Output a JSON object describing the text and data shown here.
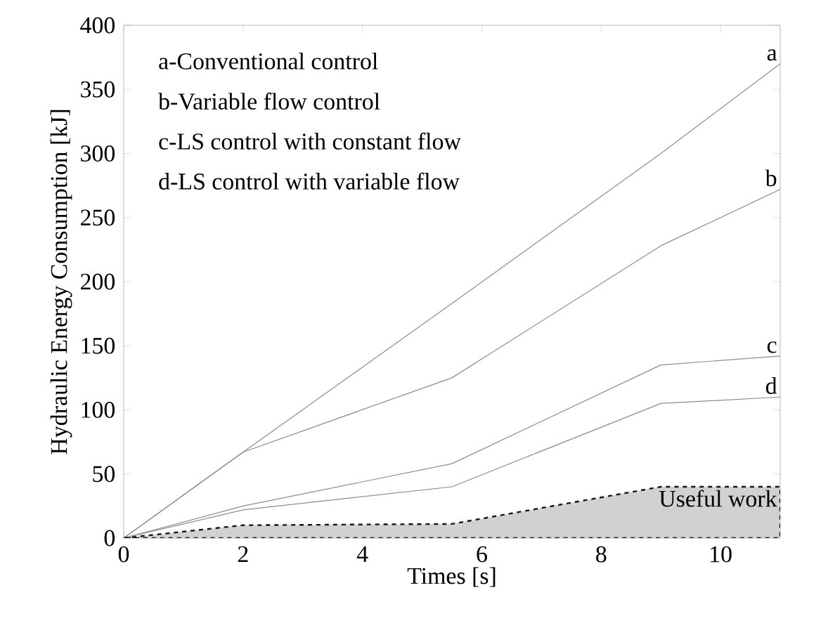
{
  "chart_data": {
    "type": "line",
    "xlabel": "Times [s]",
    "ylabel": "Hydraulic Energy Consumption  [kJ]",
    "xlim": [
      0,
      11
    ],
    "ylim": [
      0,
      400
    ],
    "xticks": [
      0,
      2,
      4,
      6,
      8,
      10
    ],
    "yticks": [
      0,
      50,
      100,
      150,
      200,
      250,
      300,
      350,
      400
    ],
    "annotations": [
      "a-Conventional control",
      "b-Variable flow control",
      "c-LS control with constant flow",
      "d-LS control with variable flow"
    ],
    "series": [
      {
        "name": "a",
        "color": "#8c8c8c",
        "x": [
          0,
          2,
          5.5,
          9,
          11
        ],
        "values": [
          0,
          67,
          183,
          300,
          370
        ]
      },
      {
        "name": "b",
        "color": "#8c8c8c",
        "x": [
          0,
          2,
          5.5,
          9,
          11
        ],
        "values": [
          0,
          67,
          125,
          228,
          272
        ]
      },
      {
        "name": "c",
        "color": "#8c8c8c",
        "x": [
          0,
          2,
          5.5,
          9,
          11
        ],
        "values": [
          0,
          25,
          58,
          135,
          142
        ]
      },
      {
        "name": "d",
        "color": "#8c8c8c",
        "x": [
          0,
          2,
          5.5,
          9,
          11
        ],
        "values": [
          0,
          22,
          40,
          105,
          110
        ]
      },
      {
        "name": "Useful work",
        "type": "area",
        "color": "#d1d1d1",
        "line_style": "dashed",
        "x": [
          0,
          2,
          5.5,
          9,
          11
        ],
        "values": [
          0,
          10,
          11,
          40,
          40
        ]
      }
    ]
  }
}
